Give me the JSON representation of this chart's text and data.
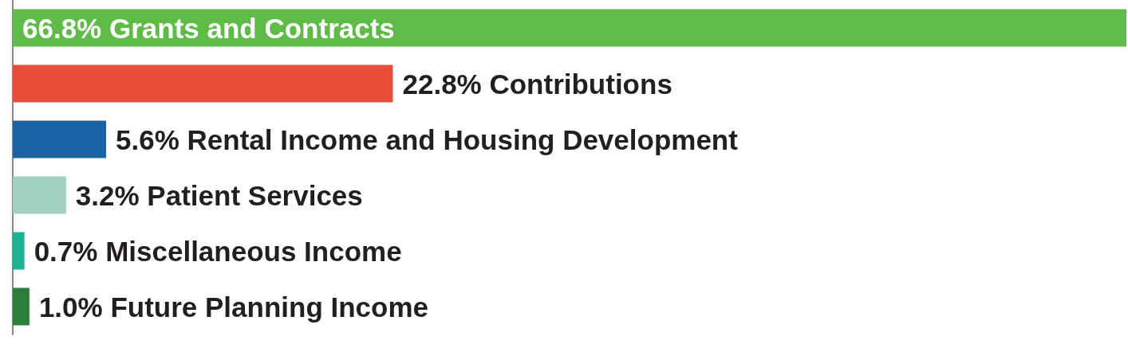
{
  "chart_data": {
    "type": "bar",
    "orientation": "horizontal",
    "categories": [
      null,
      null,
      null,
      null,
      null,
      null
    ],
    "values": [
      66.8,
      22.8,
      5.6,
      3.2,
      0.7,
      1.0
    ],
    "colors": [
      "#5dbb46",
      "#e84e36",
      "#1a64a3",
      "#a2d1c2",
      "#1ab394",
      "#2e7d3c"
    ],
    "value_labels": [
      "66.8% Grants and Contracts",
      "22.8% Contributions",
      "5.6% Rental Income and Housing Development",
      "3.2% Patient Services",
      "0.7% Miscellaneous Income",
      "1.0% Future Planning Income"
    ]
  }
}
